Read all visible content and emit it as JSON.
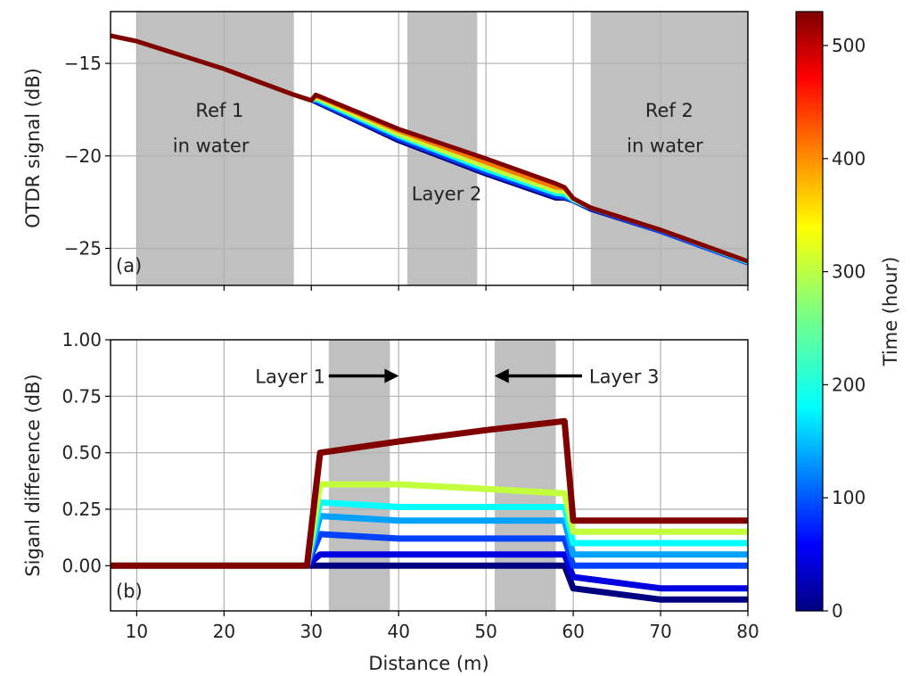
{
  "chart_data": [
    {
      "panel": "(a)",
      "type": "line",
      "xlabel": "",
      "ylabel": "OTDR signal (dB)",
      "xlim": [
        7,
        80
      ],
      "ylim": [
        -27,
        -12.2
      ],
      "x_ticks": [
        10,
        20,
        30,
        40,
        50,
        60,
        70,
        80
      ],
      "y_ticks": [
        -25,
        -20,
        -15
      ],
      "y_tick_labels": [
        "−25",
        "−20",
        "−15"
      ],
      "grid": true,
      "shaded_regions": [
        [
          10,
          28
        ],
        [
          41,
          49
        ],
        [
          62,
          80
        ]
      ],
      "annotations": [
        {
          "text": "Ref 1",
          "x": 19.5,
          "y": -17.5
        },
        {
          "text": "in water",
          "x": 18.5,
          "y": -19.4
        },
        {
          "text": "Layer 2",
          "x": 45.5,
          "y": -22.0
        },
        {
          "text": "Ref 2",
          "x": 71,
          "y": -17.5
        },
        {
          "text": "in water",
          "x": 70.5,
          "y": -19.4
        }
      ],
      "series": [
        {
          "time_hour": 0,
          "x": [
            7,
            10,
            20,
            28,
            30,
            30.5,
            40,
            50,
            58,
            59,
            60,
            62,
            70,
            80
          ],
          "y": [
            -13.5,
            -13.8,
            -15.3,
            -16.7,
            -17.0,
            -17.1,
            -19.2,
            -21.0,
            -22.3,
            -22.3,
            -22.45,
            -22.9,
            -24.1,
            -25.8
          ]
        },
        {
          "time_hour": 100,
          "x": [
            7,
            10,
            20,
            28,
            30,
            30.5,
            40,
            50,
            58,
            59,
            60,
            62,
            70,
            80
          ],
          "y": [
            -13.5,
            -13.8,
            -15.3,
            -16.7,
            -17.0,
            -17.05,
            -19.1,
            -20.9,
            -22.2,
            -22.25,
            -22.45,
            -22.85,
            -24.1,
            -25.8
          ]
        },
        {
          "time_hour": 200,
          "x": [
            7,
            10,
            20,
            28,
            30,
            30.5,
            40,
            50,
            58,
            59,
            60,
            62,
            70,
            80
          ],
          "y": [
            -13.5,
            -13.8,
            -15.3,
            -16.7,
            -17.0,
            -16.95,
            -18.95,
            -20.75,
            -22.05,
            -22.1,
            -22.4,
            -22.8,
            -24.0,
            -25.75
          ]
        },
        {
          "time_hour": 300,
          "x": [
            7,
            10,
            20,
            28,
            30,
            30.5,
            40,
            50,
            58,
            59,
            60,
            62,
            70,
            80
          ],
          "y": [
            -13.5,
            -13.8,
            -15.3,
            -16.7,
            -17.0,
            -16.85,
            -18.85,
            -20.6,
            -21.9,
            -21.95,
            -22.35,
            -22.8,
            -24.0,
            -25.7
          ]
        },
        {
          "time_hour": 400,
          "x": [
            7,
            10,
            20,
            28,
            30,
            30.5,
            40,
            50,
            58,
            59,
            60,
            62,
            70,
            80
          ],
          "y": [
            -13.5,
            -13.8,
            -15.3,
            -16.7,
            -17.0,
            -16.75,
            -18.65,
            -20.35,
            -21.7,
            -21.75,
            -22.3,
            -22.8,
            -24.0,
            -25.7
          ]
        },
        {
          "time_hour": 530,
          "x": [
            7,
            10,
            20,
            28,
            30,
            30.5,
            40,
            50,
            58,
            59,
            60,
            62,
            70,
            80
          ],
          "y": [
            -13.5,
            -13.8,
            -15.3,
            -16.7,
            -17.0,
            -16.7,
            -18.55,
            -20.15,
            -21.5,
            -21.7,
            -22.3,
            -22.8,
            -24.0,
            -25.7
          ]
        }
      ]
    },
    {
      "panel": "(b)",
      "type": "line",
      "xlabel": "Distance (m)",
      "ylabel": "Siganl difference (dB)",
      "xlim": [
        7,
        80
      ],
      "ylim": [
        -0.2,
        1.0
      ],
      "x_ticks": [
        10,
        20,
        30,
        40,
        50,
        60,
        70,
        80
      ],
      "y_ticks": [
        0.0,
        0.25,
        0.5,
        0.75,
        1.0
      ],
      "y_tick_labels": [
        "0.00",
        "0.25",
        "0.50",
        "0.75",
        "1.00"
      ],
      "grid": true,
      "shaded_regions": [
        [
          32,
          39
        ],
        [
          51,
          58
        ]
      ],
      "annotations": [
        {
          "text": "Layer 1",
          "arrow_from": 32,
          "arrow_to": 39,
          "y": 0.84
        },
        {
          "text": "Layer 3",
          "arrow_from": 61,
          "arrow_to": 52,
          "y": 0.84
        }
      ],
      "series": [
        {
          "time_hour": 0,
          "x": [
            7,
            20,
            29.5,
            31,
            40,
            50,
            59,
            60,
            70,
            80
          ],
          "y": [
            0.0,
            0.0,
            0.0,
            0.0,
            0.0,
            0.0,
            0.0,
            -0.1,
            -0.15,
            -0.15
          ]
        },
        {
          "time_hour": 50,
          "x": [
            7,
            20,
            29.5,
            31,
            40,
            50,
            59,
            60,
            70,
            80
          ],
          "y": [
            0.0,
            0.0,
            0.0,
            0.05,
            0.05,
            0.05,
            0.05,
            -0.05,
            -0.1,
            -0.1
          ]
        },
        {
          "time_hour": 100,
          "x": [
            7,
            20,
            29.5,
            31,
            40,
            50,
            59,
            60,
            70,
            80
          ],
          "y": [
            0.0,
            0.0,
            0.0,
            0.14,
            0.12,
            0.12,
            0.12,
            0.0,
            0.0,
            0.0
          ]
        },
        {
          "time_hour": 150,
          "x": [
            7,
            20,
            29.5,
            31,
            40,
            50,
            59,
            60,
            70,
            80
          ],
          "y": [
            0.0,
            0.0,
            0.0,
            0.22,
            0.2,
            0.2,
            0.2,
            0.05,
            0.05,
            0.05
          ]
        },
        {
          "time_hour": 200,
          "x": [
            7,
            20,
            29.5,
            31,
            40,
            50,
            59,
            60,
            70,
            80
          ],
          "y": [
            0.0,
            0.0,
            0.0,
            0.28,
            0.26,
            0.26,
            0.26,
            0.1,
            0.1,
            0.1
          ]
        },
        {
          "time_hour": 300,
          "x": [
            7,
            20,
            29.5,
            31,
            40,
            50,
            59,
            60,
            70,
            80
          ],
          "y": [
            0.0,
            0.0,
            0.0,
            0.36,
            0.36,
            0.34,
            0.32,
            0.15,
            0.15,
            0.15
          ]
        },
        {
          "time_hour": 530,
          "x": [
            7,
            20,
            29.5,
            31,
            40,
            50,
            59,
            60,
            70,
            80
          ],
          "y": [
            0.0,
            0.0,
            0.0,
            0.5,
            0.55,
            0.6,
            0.64,
            0.2,
            0.2,
            0.2
          ]
        }
      ]
    }
  ],
  "colorbar": {
    "label": "Time (hour)",
    "min": 0,
    "max": 530,
    "ticks": [
      0,
      100,
      200,
      300,
      400,
      500
    ],
    "colormap": "jet",
    "colormap_stops": [
      "#00007f",
      "#0000ff",
      "#007fff",
      "#00ffff",
      "#7fff7f",
      "#ffff00",
      "#ff7f00",
      "#ff0000",
      "#7f0000"
    ]
  },
  "colors": {
    "shade": "#c0c0c0",
    "grid": "#b0b0b0",
    "frame": "#000000"
  }
}
